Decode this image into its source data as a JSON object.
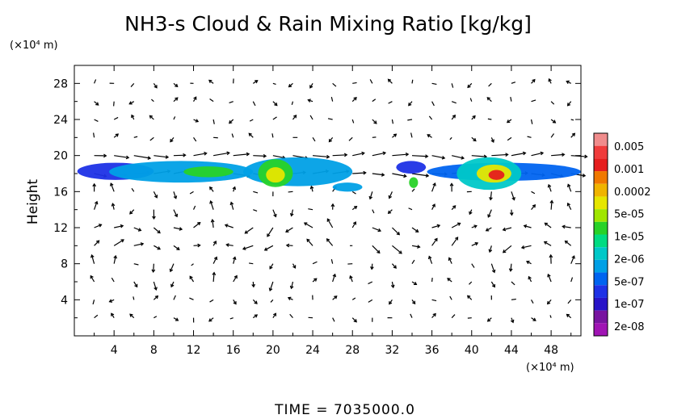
{
  "chart_data": {
    "type": "heatmap",
    "title": "NH3-s Cloud & Rain Mixing Ratio [kg/kg]",
    "ylabel": "Height",
    "y_unit": "(×10⁴ m)",
    "x_unit": "(×10⁴ m)",
    "xlim": [
      0,
      51
    ],
    "ylim": [
      0,
      30
    ],
    "xticks": [
      "4",
      "8",
      "12",
      "16",
      "20",
      "24",
      "28",
      "32",
      "36",
      "40",
      "44",
      "48"
    ],
    "yticks": [
      "4",
      "8",
      "12",
      "16",
      "20",
      "24",
      "28"
    ],
    "colorbar": {
      "labels": [
        "0.005",
        "0.001",
        "0.0002",
        "5e-05",
        "1e-05",
        "2e-06",
        "5e-07",
        "1e-07",
        "2e-08"
      ],
      "colors": [
        "#f08c8c",
        "#f03c3c",
        "#e61e1e",
        "#f07800",
        "#f0b400",
        "#e6e600",
        "#a0e600",
        "#28d228",
        "#00dc82",
        "#00c8c8",
        "#00a0e6",
        "#0064f0",
        "#1e32e6",
        "#2814c8",
        "#7814a0",
        "#a014b4"
      ]
    },
    "regions": [
      {
        "x": [
          0.3,
          8
        ],
        "y": [
          17.3,
          19.2
        ],
        "level": 3
      },
      {
        "x": [
          3.5,
          18
        ],
        "y": [
          17.0,
          19.4
        ],
        "level": 5
      },
      {
        "x": [
          11,
          16
        ],
        "y": [
          17.6,
          18.8
        ],
        "level": 8
      },
      {
        "x": [
          17,
          28
        ],
        "y": [
          16.6,
          19.8
        ],
        "level": 5
      },
      {
        "x": [
          18.5,
          22
        ],
        "y": [
          16.5,
          19.6
        ],
        "level": 8
      },
      {
        "x": [
          19.3,
          21.2
        ],
        "y": [
          17.0,
          18.7
        ],
        "level": 10
      },
      {
        "x": [
          26,
          29
        ],
        "y": [
          16.0,
          17.0
        ],
        "level": 5
      },
      {
        "x": [
          32.4,
          35.4
        ],
        "y": [
          18.0,
          19.4
        ],
        "level": 3
      },
      {
        "x": [
          33.7,
          34.6
        ],
        "y": [
          16.4,
          17.6
        ],
        "level": 8
      },
      {
        "x": [
          35.5,
          51
        ],
        "y": [
          17.2,
          19.2
        ],
        "level": 4
      },
      {
        "x": [
          38.5,
          45
        ],
        "y": [
          16.2,
          19.8
        ],
        "level": 6
      },
      {
        "x": [
          40.5,
          44
        ],
        "y": [
          17.0,
          19.0
        ],
        "level": 10
      },
      {
        "x": [
          41.7,
          43.3
        ],
        "y": [
          17.3,
          18.4
        ],
        "level": 13
      }
    ]
  },
  "footer": {
    "time_label": "TIME = 7035000.0"
  }
}
